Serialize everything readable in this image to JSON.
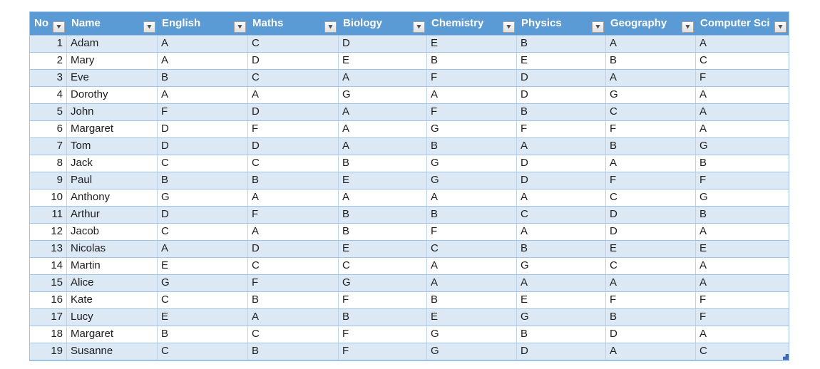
{
  "table": {
    "columns": [
      {
        "label": "No"
      },
      {
        "label": "Name"
      },
      {
        "label": "English"
      },
      {
        "label": "Maths"
      },
      {
        "label": "Biology"
      },
      {
        "label": "Chemistry"
      },
      {
        "label": "Physics"
      },
      {
        "label": "Geography"
      },
      {
        "label": "Computer Sci"
      }
    ],
    "rows": [
      [
        "1",
        "Adam",
        "A",
        "C",
        "D",
        "E",
        "B",
        "A",
        "A"
      ],
      [
        "2",
        "Mary",
        "A",
        "D",
        "E",
        "B",
        "E",
        "B",
        "C"
      ],
      [
        "3",
        "Eve",
        "B",
        "C",
        "A",
        "F",
        "D",
        "A",
        "F"
      ],
      [
        "4",
        "Dorothy",
        "A",
        "A",
        "G",
        "A",
        "D",
        "G",
        "A"
      ],
      [
        "5",
        "John",
        "F",
        "D",
        "A",
        "F",
        "B",
        "C",
        "A"
      ],
      [
        "6",
        "Margaret",
        "D",
        "F",
        "A",
        "G",
        "F",
        "F",
        "A"
      ],
      [
        "7",
        "Tom",
        "D",
        "D",
        "A",
        "B",
        "A",
        "B",
        "G"
      ],
      [
        "8",
        "Jack",
        "C",
        "C",
        "B",
        "G",
        "D",
        "A",
        "B"
      ],
      [
        "9",
        "Paul",
        "B",
        "B",
        "E",
        "G",
        "D",
        "F",
        "F"
      ],
      [
        "10",
        "Anthony",
        "G",
        "A",
        "A",
        "A",
        "A",
        "C",
        "G"
      ],
      [
        "11",
        "Arthur",
        "D",
        "F",
        "B",
        "B",
        "C",
        "D",
        "B"
      ],
      [
        "12",
        "Jacob",
        "C",
        "A",
        "B",
        "F",
        "A",
        "D",
        "A"
      ],
      [
        "13",
        "Nicolas",
        "A",
        "D",
        "E",
        "C",
        "B",
        "E",
        "E"
      ],
      [
        "14",
        "Martin",
        "E",
        "C",
        "C",
        "A",
        "G",
        "C",
        "A"
      ],
      [
        "15",
        "Alice",
        "G",
        "F",
        "G",
        "A",
        "A",
        "A",
        "A"
      ],
      [
        "16",
        "Kate",
        "C",
        "B",
        "F",
        "B",
        "E",
        "F",
        "F"
      ],
      [
        "17",
        "Lucy",
        "E",
        "A",
        "B",
        "E",
        "G",
        "B",
        "F"
      ],
      [
        "18",
        "Margaret",
        "B",
        "C",
        "F",
        "G",
        "B",
        "D",
        "A"
      ],
      [
        "19",
        "Susanne",
        "C",
        "B",
        "F",
        "G",
        "D",
        "A",
        "C"
      ]
    ]
  },
  "icons": {
    "filter_dropdown_icon": "▼"
  },
  "colors": {
    "header_bg": "#5B9BD5",
    "header_text": "#FFFFFF",
    "banded_row_bg": "#DCE9F5",
    "row_border": "#9DC3E6",
    "column_border": "#BDD3E8",
    "resize_handle": "#4169B1"
  }
}
